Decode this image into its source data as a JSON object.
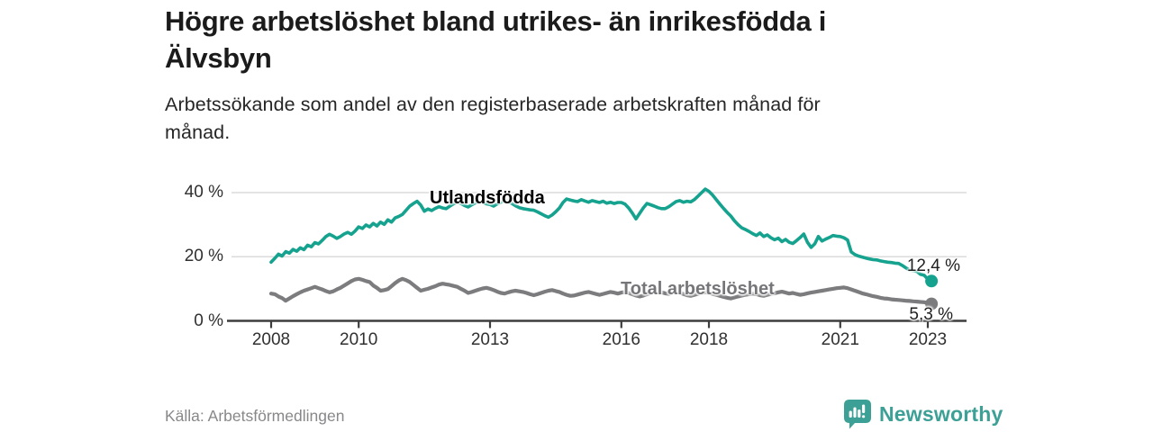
{
  "header": {
    "title_line1": "Högre arbetslöshet bland utrikes- än inrikesfödda i",
    "title_line2": "Älvsbyn",
    "subtitle_line1": "Arbetssökande som andel av den registerbaserade arbetskraften månad för",
    "subtitle_line2": "månad."
  },
  "chart_data": {
    "type": "line",
    "title": "Högre arbetslöshet bland utrikes- än inrikesfödda i Älvsbyn",
    "subtitle": "Arbetssökande som andel av den registerbaserade arbetskraften månad för månad.",
    "x_unit": "year-month",
    "x_start": 2008.0,
    "x_step": 0.0833,
    "xlim": [
      2007.0,
      2023.9
    ],
    "ylim": [
      0,
      44
    ],
    "grid": "horizontal",
    "legend_position": "inline-labels",
    "x_axis": {
      "ticks": [
        {
          "label": "2008",
          "year": 2008
        },
        {
          "label": "2010",
          "year": 2010
        },
        {
          "label": "2013",
          "year": 2013
        },
        {
          "label": "2016",
          "year": 2016
        },
        {
          "label": "2018",
          "year": 2018
        },
        {
          "label": "2021",
          "year": 2021
        },
        {
          "label": "2023",
          "year": 2023
        }
      ]
    },
    "y_axis": {
      "ticks": [
        {
          "label": "0 %",
          "value": 0
        },
        {
          "label": "20 %",
          "value": 20
        },
        {
          "label": "40 %",
          "value": 40
        }
      ]
    },
    "colors": {
      "axis": "#3d3d3d",
      "gridline": "#dbdbdb"
    },
    "series": [
      {
        "name": "Utlandsfödda",
        "color": "#15a28e",
        "end_label": "12,4 %",
        "end_value": 12.4,
        "values": [
          18.3,
          19.5,
          20.8,
          20.2,
          21.6,
          21.1,
          22.3,
          21.7,
          22.8,
          22.2,
          23.6,
          23.1,
          24.4,
          24.0,
          25.1,
          26.3,
          27.0,
          26.4,
          25.7,
          26.3,
          27.1,
          27.6,
          27.0,
          28.0,
          29.3,
          28.8,
          29.9,
          29.3,
          30.4,
          29.6,
          30.8,
          30.1,
          31.5,
          30.8,
          32.1,
          32.6,
          33.2,
          34.5,
          35.8,
          36.6,
          37.3,
          36.1,
          34.2,
          34.9,
          34.4,
          35.1,
          35.6,
          35.2,
          35.0,
          35.8,
          36.5,
          37.0,
          36.6,
          36.0,
          35.5,
          36.2,
          36.8,
          37.2,
          36.9,
          36.5,
          36.3,
          35.8,
          36.5,
          37.0,
          37.6,
          37.2,
          36.6,
          35.9,
          35.3,
          35.0,
          34.8,
          34.6,
          34.5,
          34.0,
          33.4,
          32.8,
          32.3,
          33.0,
          34.0,
          35.2,
          36.9,
          38.0,
          37.7,
          37.4,
          37.2,
          37.8,
          37.4,
          37.0,
          37.5,
          37.2,
          36.9,
          37.3,
          36.7,
          37.0,
          36.6,
          36.9,
          36.9,
          36.4,
          35.2,
          33.6,
          31.8,
          33.5,
          35.2,
          36.6,
          36.2,
          35.8,
          35.3,
          35.0,
          35.0,
          35.6,
          36.4,
          37.2,
          37.5,
          37.0,
          37.3,
          37.1,
          37.8,
          38.9,
          40.0,
          41.1,
          40.4,
          39.2,
          37.8,
          36.4,
          35.1,
          33.8,
          32.7,
          31.2,
          30.0,
          29.0,
          28.5,
          27.9,
          27.2,
          26.6,
          27.4,
          26.3,
          26.8,
          25.9,
          25.3,
          25.8,
          24.7,
          25.4,
          24.5,
          24.1,
          25.0,
          26.0,
          27.1,
          24.5,
          22.9,
          24.0,
          26.3,
          24.9,
          25.5,
          26.0,
          26.6,
          26.4,
          26.3,
          25.9,
          25.2,
          21.5,
          20.7,
          20.2,
          19.9,
          19.6,
          19.3,
          19.1,
          19.0,
          18.7,
          18.5,
          18.3,
          18.2,
          18.0,
          17.9,
          17.3,
          16.5,
          15.9,
          15.6,
          15.4,
          14.5,
          14.2,
          13.0,
          12.4
        ]
      },
      {
        "name": "Total arbetslöshet",
        "color": "#7c7c7e",
        "end_label": "5,3 %",
        "end_value": 5.3,
        "values": [
          8.5,
          8.3,
          7.6,
          7.1,
          6.3,
          7.0,
          7.7,
          8.3,
          8.9,
          9.4,
          9.8,
          10.2,
          10.6,
          10.2,
          9.8,
          9.3,
          8.9,
          9.2,
          9.8,
          10.3,
          11.0,
          11.7,
          12.4,
          12.9,
          13.1,
          12.8,
          12.4,
          12.1,
          11.0,
          10.3,
          9.4,
          9.6,
          9.9,
          10.8,
          11.8,
          12.6,
          13.1,
          12.7,
          12.1,
          11.2,
          10.3,
          9.4,
          9.7,
          10.0,
          10.4,
          10.8,
          11.3,
          11.6,
          11.4,
          11.2,
          10.9,
          10.6,
          10.0,
          9.4,
          8.7,
          9.0,
          9.4,
          9.8,
          10.1,
          10.3,
          10.0,
          9.6,
          9.1,
          8.7,
          8.5,
          8.9,
          9.2,
          9.4,
          9.2,
          9.0,
          8.7,
          8.3,
          8.0,
          8.3,
          8.7,
          9.1,
          9.4,
          9.6,
          9.3,
          9.0,
          8.5,
          8.1,
          7.8,
          7.9,
          8.2,
          8.5,
          8.8,
          9.0,
          8.7,
          8.4,
          8.1,
          8.4,
          8.7,
          9.0,
          8.8,
          8.5,
          8.8,
          9.0,
          8.7,
          8.3,
          7.9,
          7.6,
          7.9,
          8.3,
          8.6,
          8.9,
          9.1,
          8.9,
          8.6,
          8.4,
          8.7,
          9.0,
          8.8,
          8.4,
          8.0,
          7.8,
          8.1,
          8.4,
          8.7,
          8.9,
          8.7,
          8.4,
          8.1,
          7.8,
          7.5,
          7.2,
          7.0,
          7.3,
          7.6,
          7.9,
          8.1,
          8.3,
          8.5,
          8.3,
          8.0,
          7.8,
          8.1,
          8.4,
          8.6,
          8.9,
          9.1,
          8.8,
          8.5,
          8.7,
          8.4,
          8.1,
          8.3,
          8.6,
          8.8,
          9.0,
          9.2,
          9.4,
          9.6,
          9.8,
          10.0,
          10.2,
          10.3,
          10.4,
          10.2,
          9.8,
          9.4,
          9.0,
          8.6,
          8.3,
          8.0,
          7.7,
          7.5,
          7.2,
          7.0,
          6.9,
          6.7,
          6.6,
          6.5,
          6.4,
          6.3,
          6.2,
          6.1,
          6.0,
          5.9,
          5.8,
          5.5,
          5.3
        ]
      }
    ]
  },
  "footer": {
    "source": "Källa: Arbetsförmedlingen",
    "brand": "Newsworthy",
    "brand_color": "#3da096"
  }
}
